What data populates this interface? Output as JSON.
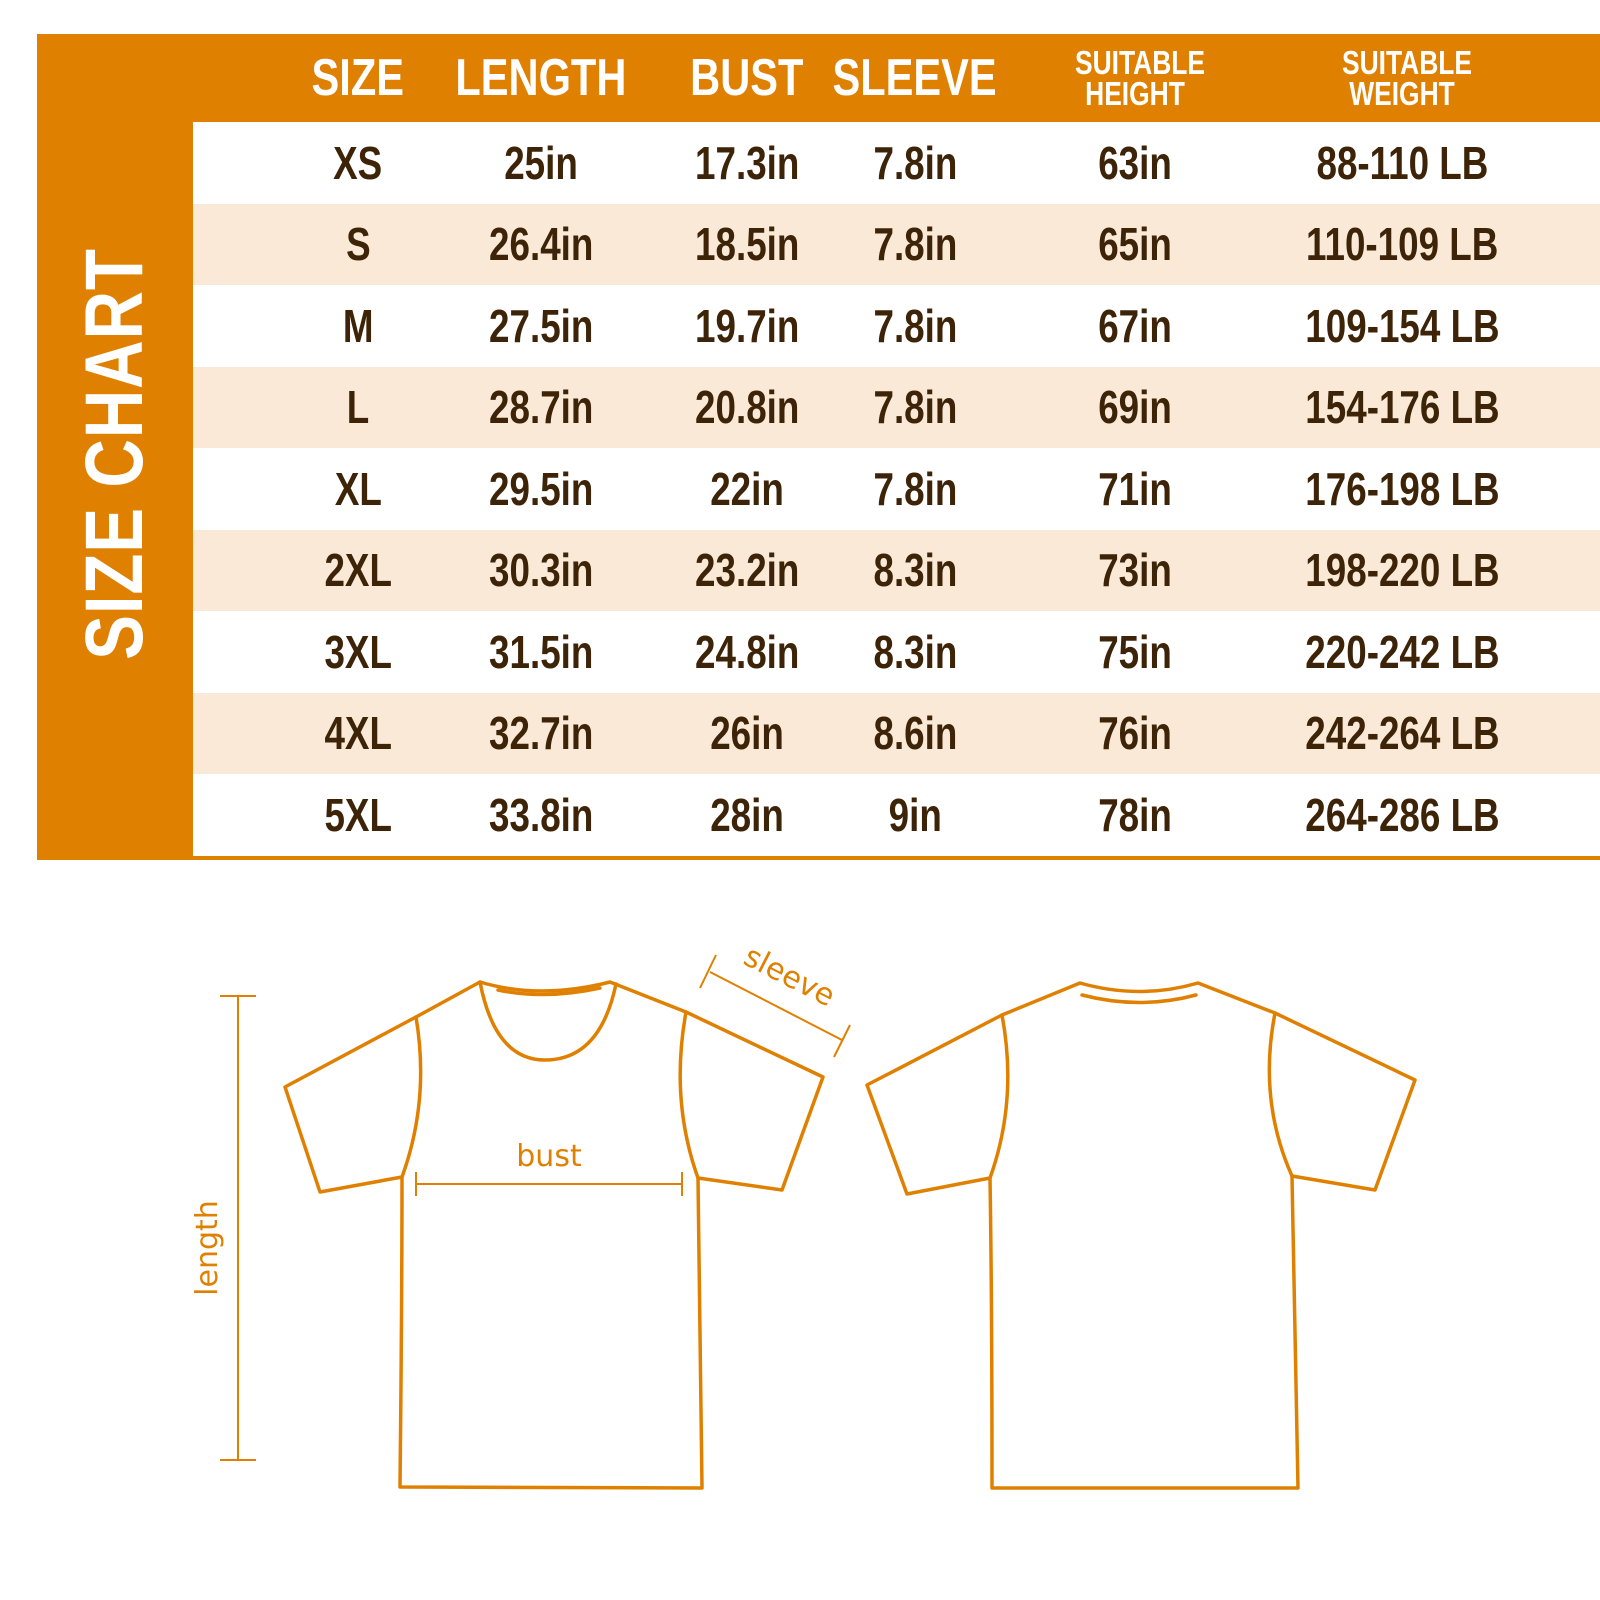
{
  "title": "SIZE CHART",
  "colors": {
    "accent": "#e08000",
    "row_alt": "#fae9d6",
    "text": "#3d2408"
  },
  "columns": [
    "SIZE",
    "LENGTH",
    "BUST",
    "SLEEVE",
    "SUITABLE HEIGHT",
    "SUITABLE WEIGHT"
  ],
  "rows": [
    [
      "XS",
      "25in",
      "17.3in",
      "7.8in",
      "63in",
      "88-110 LB"
    ],
    [
      "S",
      "26.4in",
      "18.5in",
      "7.8in",
      "65in",
      "110-109 LB"
    ],
    [
      "M",
      "27.5in",
      "19.7in",
      "7.8in",
      "67in",
      "109-154 LB"
    ],
    [
      "L",
      "28.7in",
      "20.8in",
      "7.8in",
      "69in",
      "154-176 LB"
    ],
    [
      "XL",
      "29.5in",
      "22in",
      "7.8in",
      "71in",
      "176-198 LB"
    ],
    [
      "2XL",
      "30.3in",
      "23.2in",
      "8.3in",
      "73in",
      "198-220 LB"
    ],
    [
      "3XL",
      "31.5in",
      "24.8in",
      "8.3in",
      "75in",
      "220-242 LB"
    ],
    [
      "4XL",
      "32.7in",
      "26in",
      "8.6in",
      "76in",
      "242-264 LB"
    ],
    [
      "5XL",
      "33.8in",
      "28in",
      "9in",
      "78in",
      "264-286 LB"
    ]
  ],
  "diagram": {
    "sleeve_label": "sleeve",
    "bust_label": "bust",
    "length_label": "length"
  }
}
